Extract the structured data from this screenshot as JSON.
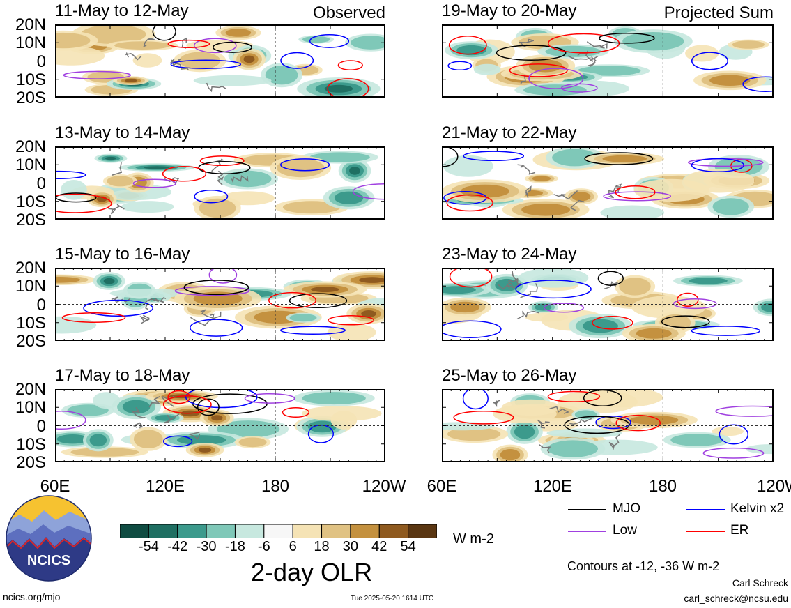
{
  "panels_left": [
    {
      "title": "11-May to 12-May",
      "label": "Observed"
    },
    {
      "title": "13-May to 14-May",
      "label": ""
    },
    {
      "title": "15-May to 16-May",
      "label": ""
    },
    {
      "title": "17-May to 18-May",
      "label": ""
    }
  ],
  "panels_right": [
    {
      "title": "19-May to 20-May",
      "label": "Projected Sum"
    },
    {
      "title": "21-May to 22-May",
      "label": ""
    },
    {
      "title": "23-May to 24-May",
      "label": ""
    },
    {
      "title": "25-May to 26-May",
      "label": ""
    }
  ],
  "lat_labels": [
    "20N",
    "10N",
    "0",
    "10S",
    "20S"
  ],
  "lon_labels": [
    "60E",
    "120E",
    "180",
    "120W"
  ],
  "colorbar": {
    "colors": [
      "#0f4c42",
      "#1f6f62",
      "#3c9a8c",
      "#7fc8b8",
      "#c7e8df",
      "#f7f7f7",
      "#f5e3b5",
      "#e0c283",
      "#c4913f",
      "#8f5a1f",
      "#5a3612"
    ],
    "tick_labels": [
      "-54",
      "-42",
      "-30",
      "-18",
      "-6",
      "6",
      "18",
      "30",
      "42",
      "54"
    ],
    "units": "W m-2",
    "title": "2-day OLR"
  },
  "legend": [
    {
      "name": "MJO",
      "color": "#000000"
    },
    {
      "name": "Kelvin x2",
      "color": "#0000ff"
    },
    {
      "name": "Low",
      "color": "#a040e0"
    },
    {
      "name": "ER",
      "color": "#ff0000"
    }
  ],
  "contours_note": "Contours at -12, -36 W m-2",
  "logo_text": "NCICS",
  "footer": {
    "url": "ncics.org/mjo",
    "timestamp": "Tue 2025-05-20 1614 UTC",
    "author": "Carl Schreck",
    "email": "carl_schreck@ncsu.edu"
  }
}
